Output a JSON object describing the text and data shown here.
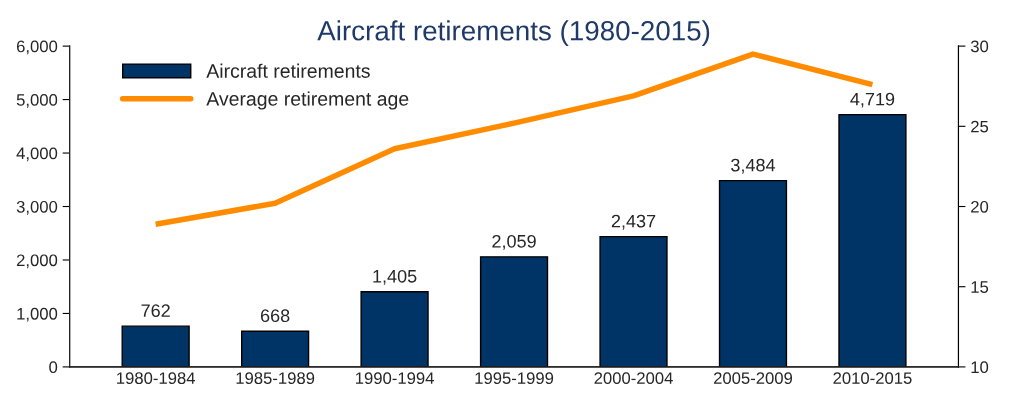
{
  "chart_data": {
    "type": "bar",
    "title": "Aircraft retirements (1980-2015)",
    "categories": [
      "1980-1984",
      "1985-1989",
      "1990-1994",
      "1995-1999",
      "2000-2004",
      "2005-2009",
      "2010-2015"
    ],
    "series": [
      {
        "name": "Aircraft retirements",
        "color": "#003366",
        "values": [
          762,
          668,
          1405,
          2059,
          2437,
          3484,
          4719
        ],
        "value_labels": [
          "762",
          "668",
          "1,405",
          "2,059",
          "2,437",
          "3,484",
          "4,719"
        ]
      },
      {
        "name": "Average retirement age",
        "type": "line",
        "axis": "y2",
        "color": "#ff8c00",
        "values": [
          18.9,
          20.2,
          23.6,
          25.2,
          26.9,
          29.5,
          27.6
        ]
      }
    ],
    "ylim": [
      0,
      6000
    ],
    "yticks": [
      {
        "value": 0,
        "label": "0"
      },
      {
        "value": 1000,
        "label": "1,000"
      },
      {
        "value": 2000,
        "label": "2,000"
      },
      {
        "value": 3000,
        "label": "3,000"
      },
      {
        "value": 4000,
        "label": "4,000"
      },
      {
        "value": 5000,
        "label": "5,000"
      },
      {
        "value": 6000,
        "label": "6,000"
      }
    ],
    "y2lim": [
      10,
      30
    ],
    "y2ticks": [
      10,
      15,
      20,
      25,
      30
    ],
    "legend": "top left",
    "grid": false
  }
}
